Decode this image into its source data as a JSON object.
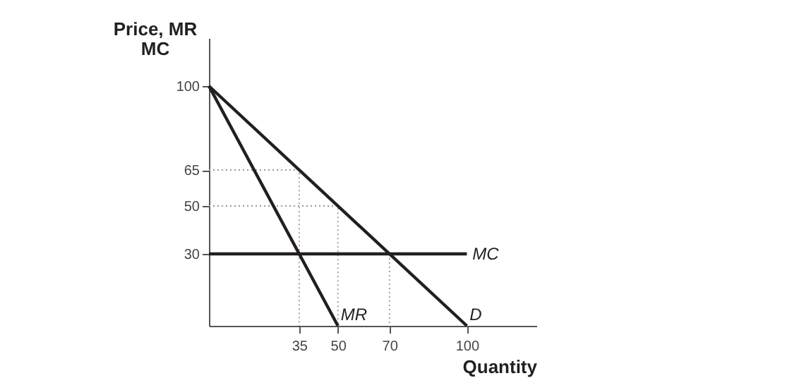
{
  "chart_data": {
    "type": "line",
    "xlabel": "Quantity",
    "ylabel": "Price, MR\nMC",
    "xlim": [
      0,
      127
    ],
    "ylim": [
      0,
      120
    ],
    "xticks": [
      35,
      50,
      70,
      100
    ],
    "yticks": [
      30,
      50,
      65,
      100
    ],
    "grid": false,
    "marker": "none",
    "series": [
      {
        "name": "D",
        "color": "#231f20",
        "x": [
          0,
          100
        ],
        "values": [
          100,
          0
        ],
        "line_style": "solid"
      },
      {
        "name": "MR",
        "color": "#231f20",
        "x": [
          0,
          50
        ],
        "values": [
          100,
          0
        ],
        "line_style": "solid"
      },
      {
        "name": "MC",
        "color": "#231f20",
        "x": [
          0,
          100
        ],
        "values": [
          30,
          30
        ],
        "line_style": "solid"
      },
      {
        "color": "#999999",
        "x": [
          0,
          35,
          35
        ],
        "values": [
          65,
          65,
          0
        ],
        "line_style": "dotted"
      },
      {
        "color": "#999999",
        "x": [
          0,
          50,
          50
        ],
        "values": [
          50,
          50,
          0
        ],
        "line_style": "dotted"
      },
      {
        "color": "#999999",
        "x": [
          70,
          70
        ],
        "values": [
          30,
          0
        ],
        "line_style": "dotted"
      }
    ]
  }
}
